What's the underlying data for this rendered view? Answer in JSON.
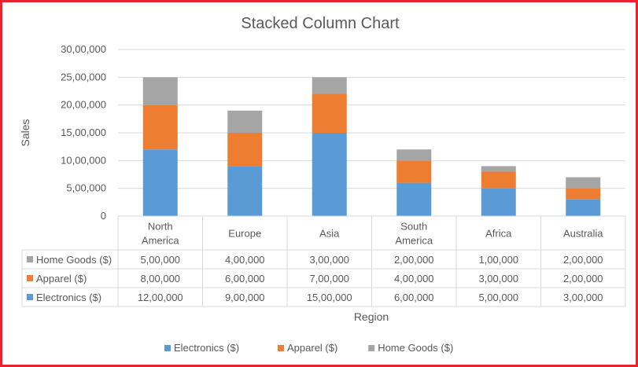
{
  "chart_data": {
    "type": "bar",
    "stacked": true,
    "title": "Stacked Column Chart",
    "xlabel": "Region",
    "ylabel": "Sales",
    "categories": [
      [
        "North",
        "America"
      ],
      [
        "Europe"
      ],
      [
        "Asia"
      ],
      [
        "South",
        "America"
      ],
      [
        "Africa"
      ],
      [
        "Australia"
      ]
    ],
    "series": [
      {
        "name": "Electronics ($)",
        "color": "#5b9bd5",
        "values": [
          1200000,
          900000,
          1500000,
          600000,
          500000,
          300000
        ],
        "labels": [
          "12,00,000",
          "9,00,000",
          "15,00,000",
          "6,00,000",
          "5,00,000",
          "3,00,000"
        ]
      },
      {
        "name": "Apparel ($)",
        "color": "#ed7d31",
        "values": [
          800000,
          600000,
          700000,
          400000,
          300000,
          200000
        ],
        "labels": [
          "8,00,000",
          "6,00,000",
          "7,00,000",
          "4,00,000",
          "3,00,000",
          "2,00,000"
        ]
      },
      {
        "name": "Home Goods ($)",
        "color": "#a5a5a5",
        "values": [
          500000,
          400000,
          300000,
          200000,
          100000,
          200000
        ],
        "labels": [
          "5,00,000",
          "4,00,000",
          "3,00,000",
          "2,00,000",
          "1,00,000",
          "2,00,000"
        ]
      }
    ],
    "ylim": [
      0,
      3000000
    ],
    "yticks": [
      0,
      500000,
      1000000,
      1500000,
      2000000,
      2500000,
      3000000
    ],
    "ytick_labels": [
      "0",
      "5,00,000",
      "10,00,000",
      "15,00,000",
      "20,00,000",
      "25,00,000",
      "30,00,000"
    ],
    "grid": true,
    "legend_position": "bottom",
    "data_table": true,
    "data_table_row_order": [
      2,
      1,
      0
    ]
  },
  "colors": {
    "border": "#e8232b",
    "gridline": "#d9d9d9",
    "text": "#595959",
    "title": "#595959"
  }
}
